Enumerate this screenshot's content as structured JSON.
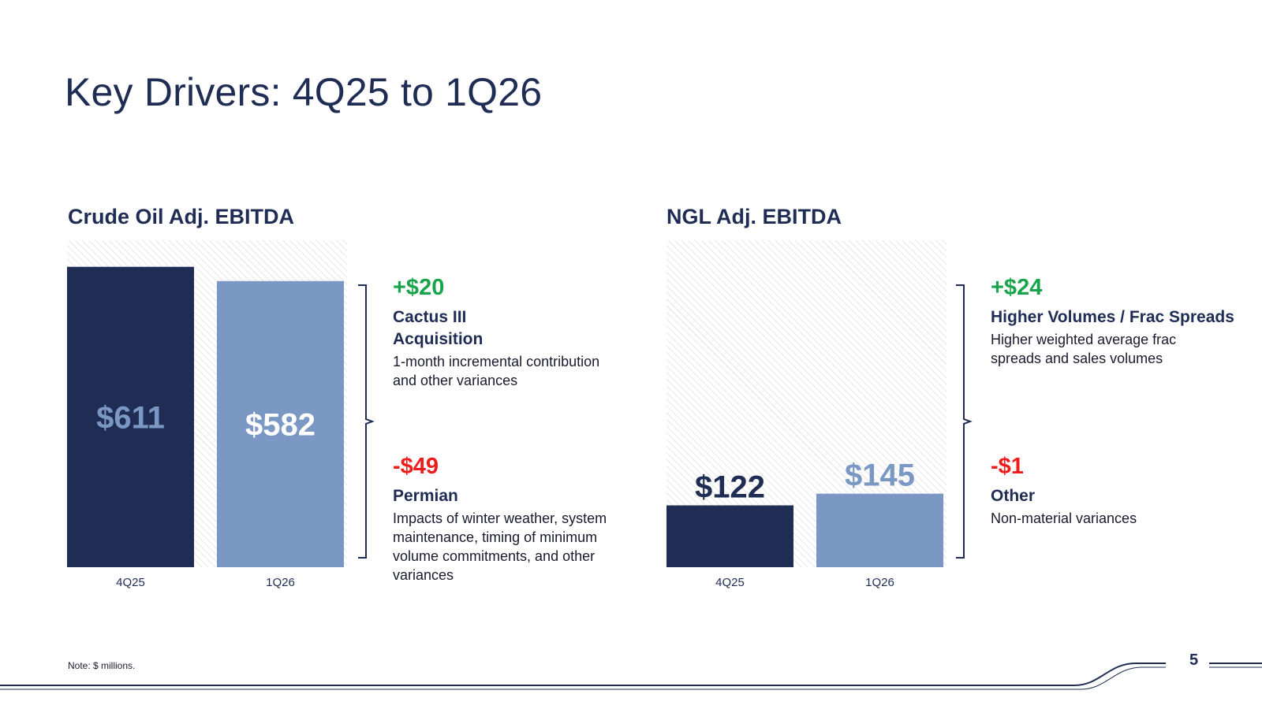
{
  "title": "Key Drivers: 4Q25 to 1Q26",
  "colors": {
    "navy": "#1f2d55",
    "light_blue": "#7b98c4",
    "positive": "#19a34a",
    "negative": "#ee1c1c"
  },
  "footnote": "Note: $ millions.",
  "page_number": "5",
  "chart_data": [
    {
      "type": "bar",
      "title": "Crude Oil Adj. EBITDA",
      "categories": [
        "4Q25",
        "1Q26"
      ],
      "values": [
        611,
        582
      ],
      "value_labels": [
        "$611",
        "$582"
      ],
      "ylim": [
        0,
        665
      ],
      "bar_colors": [
        "#1f2d55",
        "#7b98c4"
      ],
      "value_label_colors": [
        "#7b98c4",
        "#ffffff"
      ],
      "value_label_position": "inside",
      "hatched_background": true
    },
    {
      "type": "bar",
      "title": "NGL Adj. EBITDA",
      "categories": [
        "4Q25",
        "1Q26"
      ],
      "values": [
        122,
        145
      ],
      "value_labels": [
        "$122",
        "$145"
      ],
      "ylim": [
        0,
        645
      ],
      "bar_colors": [
        "#1f2d55",
        "#7b98c4"
      ],
      "value_label_colors": [
        "#1f2d55",
        "#7b98c4"
      ],
      "value_label_position": "above",
      "hatched_background": true
    }
  ],
  "crude_drivers": [
    {
      "delta": "+$20",
      "heading": "Cactus III Acquisition",
      "body": "1-month incremental contribution and other variances"
    },
    {
      "delta": "-$49",
      "heading": "Permian",
      "body": "Impacts of winter weather, system maintenance, timing of minimum volume commitments, and other variances"
    }
  ],
  "ngl_drivers": [
    {
      "delta": "+$24",
      "heading": "Higher Volumes / Frac Spreads",
      "body": "Higher weighted average frac spreads and sales volumes"
    },
    {
      "delta": "-$1",
      "heading": "Other",
      "body": "Non-material variances"
    }
  ]
}
